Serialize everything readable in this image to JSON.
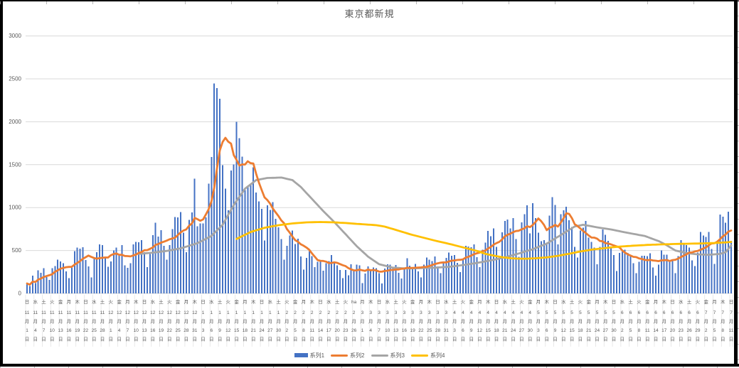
{
  "chart_data": {
    "type": "bar+line",
    "title": "東京都新規",
    "legend_position": "bottom",
    "grid": "horizontal",
    "y_axis": {
      "min": 0,
      "max": 3000,
      "step": 500,
      "ticks": [
        "0",
        "500",
        "1000",
        "1500",
        "2000",
        "2500",
        "3000"
      ]
    },
    "x_axis": {
      "month_suffix": "月",
      "day_suffix": "日",
      "label_every_n_days": 3,
      "labels": [
        [
          "日",
          "11",
          "1"
        ],
        [
          "水",
          "11",
          "4"
        ],
        [
          "土",
          "11",
          "7"
        ],
        [
          "火",
          "11",
          "10"
        ],
        [
          "金",
          "11",
          "13"
        ],
        [
          "月",
          "11",
          "16"
        ],
        [
          "木",
          "11",
          "19"
        ],
        [
          "日",
          "11",
          "22"
        ],
        [
          "水",
          "11",
          "25"
        ],
        [
          "土",
          "11",
          "28"
        ],
        [
          "火",
          "12",
          "1"
        ],
        [
          "金",
          "12",
          "4"
        ],
        [
          "月",
          "12",
          "7"
        ],
        [
          "木",
          "12",
          "10"
        ],
        [
          "日",
          "12",
          "13"
        ],
        [
          "水",
          "12",
          "16"
        ],
        [
          "土",
          "12",
          "19"
        ],
        [
          "火",
          "12",
          "22"
        ],
        [
          "金",
          "12",
          "25"
        ],
        [
          "月",
          "12",
          "28"
        ],
        [
          "木",
          "12",
          "31"
        ],
        [
          "日",
          "1",
          "3"
        ],
        [
          "水",
          "1",
          "6"
        ],
        [
          "土",
          "1",
          "9"
        ],
        [
          "火",
          "1",
          "12"
        ],
        [
          "金",
          "1",
          "15"
        ],
        [
          "月",
          "1",
          "18"
        ],
        [
          "木",
          "1",
          "21"
        ],
        [
          "日",
          "1",
          "24"
        ],
        [
          "水",
          "1",
          "27"
        ],
        [
          "土",
          "1",
          "30"
        ],
        [
          "火",
          "2",
          "2"
        ],
        [
          "金",
          "2",
          "5"
        ],
        [
          "月",
          "2",
          "8"
        ],
        [
          "木",
          "2",
          "11"
        ],
        [
          "日",
          "2",
          "14"
        ],
        [
          "水",
          "2",
          "17"
        ],
        [
          "土",
          "2",
          "20"
        ],
        [
          "火",
          "2",
          "23"
        ],
        [
          "ha",
          "2",
          "26"
        ],
        [
          "月",
          "3",
          "1"
        ],
        [
          "木",
          "3",
          "4"
        ],
        [
          "日",
          "3",
          "7"
        ],
        [
          "水",
          "3",
          "10"
        ],
        [
          "土",
          "3",
          "13"
        ],
        [
          "火",
          "3",
          "16"
        ],
        [
          "金",
          "3",
          "19"
        ],
        [
          "月",
          "3",
          "22"
        ],
        [
          "木",
          "3",
          "25"
        ],
        [
          "日",
          "3",
          "28"
        ],
        [
          "水",
          "3",
          "31"
        ],
        [
          "土",
          "4",
          "3"
        ],
        [
          "火",
          "4",
          "6"
        ],
        [
          "金",
          "4",
          "9"
        ],
        [
          "月",
          "4",
          "12"
        ],
        [
          "木",
          "4",
          "15"
        ],
        [
          "日",
          "4",
          "18"
        ],
        [
          "水",
          "4",
          "21"
        ],
        [
          "土",
          "4",
          "24"
        ],
        [
          "火",
          "4",
          "27"
        ],
        [
          "金",
          "4",
          "30"
        ],
        [
          "月",
          "5",
          "3"
        ],
        [
          "木",
          "5",
          "6"
        ],
        [
          "日",
          "5",
          "9"
        ],
        [
          "水",
          "5",
          "12"
        ],
        [
          "土",
          "5",
          "15"
        ],
        [
          "火",
          "5",
          "18"
        ],
        [
          "金",
          "5",
          "21"
        ],
        [
          "月",
          "5",
          "24"
        ],
        [
          "木",
          "5",
          "27"
        ],
        [
          "日",
          "5",
          "30"
        ],
        [
          "水",
          "6",
          "2"
        ],
        [
          "土",
          "6",
          "5"
        ],
        [
          "火",
          "6",
          "8"
        ],
        [
          "金",
          "6",
          "11"
        ],
        [
          "月",
          "6",
          "14"
        ],
        [
          "木",
          "6",
          "17"
        ],
        [
          "日",
          "6",
          "20"
        ],
        [
          "水",
          "6",
          "23"
        ],
        [
          "土",
          "6",
          "26"
        ],
        [
          "火",
          "6",
          "29"
        ],
        [
          "金",
          "7",
          "2"
        ],
        [
          "月",
          "7",
          "5"
        ],
        [
          "木",
          "7",
          "8"
        ],
        [
          "日",
          "7",
          "11"
        ]
      ]
    },
    "series": [
      {
        "name": "系列1",
        "type": "bar",
        "color": "#4472C4",
        "values": [
          116,
          87,
          209,
          122,
          269,
          242,
          294,
          189,
          157,
          293,
          317,
          393,
          374,
          352,
          255,
          180,
          298,
          493,
          534,
          522,
          539,
          391,
          314,
          186,
          401,
          481,
          570,
          561,
          418,
          311,
          372,
          500,
          533,
          449,
          561,
          327,
          299,
          352,
          572,
          602,
          595,
          621,
          480,
          305,
          460,
          678,
          822,
          664,
          736,
          556,
          392,
          563,
          748,
          888,
          884,
          949,
          708,
          481,
          856,
          944,
          1337,
          783,
          814,
          816,
          884,
          1278,
          1591,
          2447,
          2392,
          2268,
          1494,
          1219,
          970,
          1433,
          1502,
          2001,
          1809,
          1592,
          1204,
          1240,
          1274,
          1471,
          1175,
          1070,
          986,
          618,
          1026,
          973,
          1064,
          868,
          769,
          633,
          393,
          556,
          676,
          734,
          577,
          639,
          429,
          276,
          412,
          491,
          434,
          307,
          369,
          371,
          266,
          350,
          378,
          445,
          353,
          327,
          272,
          178,
          275,
          213,
          340,
          270,
          337,
          329,
          121,
          232,
          316,
          279,
          301,
          293,
          237,
          116,
          290,
          340,
          335,
          304,
          330,
          239,
          175,
          300,
          409,
          323,
          303,
          342,
          256,
          187,
          337,
          420,
          394,
          376,
          430,
          313,
          234,
          364,
          414,
          475,
          440,
          446,
          355,
          249,
          399,
          555,
          545,
          537,
          570,
          421,
          306,
          510,
          591,
          729,
          667,
          759,
          543,
          405,
          711,
          843,
          861,
          759,
          876,
          635,
          425,
          828,
          925,
          1027,
          698,
          1050,
          879,
          708,
          609,
          621,
          591,
          907,
          1121,
          1032,
          573,
          925,
          969,
          1010,
          854,
          772,
          542,
          419,
          732,
          766,
          843,
          649,
          602,
          535,
          340,
          542,
          743,
          684,
          614,
          539,
          448,
          260,
          471,
          487,
          508,
          472,
          436,
          351,
          235,
          369,
          440,
          439,
          435,
          467,
          304,
          209,
          337,
          501,
          452,
          453,
          388,
          376,
          236,
          435,
          619,
          570,
          562,
          534,
          386,
          317,
          476,
          714,
          673,
          660,
          716,
          518,
          342,
          593,
          920,
          896,
          822,
          950,
          614
        ]
      },
      {
        "name": "系列2",
        "type": "line",
        "color": "#ED7D31",
        "derivation": "7-day trailing moving average of 系列1"
      },
      {
        "name": "系列3",
        "type": "line",
        "color": "#A5A5A5",
        "points_day_value": [
          [
            40,
            460
          ],
          [
            45,
            475
          ],
          [
            50,
            495
          ],
          [
            55,
            525
          ],
          [
            61,
            585
          ],
          [
            66,
            670
          ],
          [
            70,
            800
          ],
          [
            74,
            1030
          ],
          [
            78,
            1220
          ],
          [
            82,
            1320
          ],
          [
            86,
            1345
          ],
          [
            91,
            1350
          ],
          [
            95,
            1320
          ],
          [
            98,
            1240
          ],
          [
            102,
            1100
          ],
          [
            106,
            960
          ],
          [
            110,
            830
          ],
          [
            114,
            690
          ],
          [
            118,
            550
          ],
          [
            122,
            430
          ],
          [
            126,
            340
          ],
          [
            131,
            300
          ],
          [
            136,
            290
          ],
          [
            141,
            295
          ],
          [
            146,
            300
          ],
          [
            151,
            310
          ],
          [
            156,
            330
          ],
          [
            161,
            355
          ],
          [
            166,
            385
          ],
          [
            171,
            420
          ],
          [
            176,
            465
          ],
          [
            181,
            515
          ],
          [
            186,
            580
          ],
          [
            191,
            680
          ],
          [
            196,
            780
          ],
          [
            199,
            800
          ],
          [
            204,
            770
          ],
          [
            209,
            745
          ],
          [
            215,
            705
          ],
          [
            221,
            670
          ],
          [
            226,
            610
          ],
          [
            229,
            560
          ],
          [
            232,
            500
          ],
          [
            236,
            470
          ],
          [
            240,
            455
          ],
          [
            244,
            450
          ],
          [
            248,
            460
          ],
          [
            250,
            480
          ],
          [
            252,
            560
          ]
        ]
      },
      {
        "name": "系列4",
        "type": "line",
        "color": "#FFC000",
        "points_day_value": [
          [
            75,
            635
          ],
          [
            80,
            715
          ],
          [
            85,
            765
          ],
          [
            90,
            795
          ],
          [
            95,
            815
          ],
          [
            100,
            828
          ],
          [
            105,
            832
          ],
          [
            110,
            828
          ],
          [
            115,
            818
          ],
          [
            120,
            806
          ],
          [
            125,
            795
          ],
          [
            128,
            778
          ],
          [
            131,
            750
          ],
          [
            134,
            720
          ],
          [
            137,
            690
          ],
          [
            140,
            665
          ],
          [
            143,
            640
          ],
          [
            146,
            615
          ],
          [
            149,
            593
          ],
          [
            152,
            570
          ],
          [
            155,
            545
          ],
          [
            158,
            520
          ],
          [
            161,
            495
          ],
          [
            164,
            462
          ],
          [
            167,
            440
          ],
          [
            170,
            422
          ],
          [
            173,
            410
          ],
          [
            176,
            405
          ],
          [
            179,
            405
          ],
          [
            182,
            410
          ],
          [
            186,
            420
          ],
          [
            190,
            438
          ],
          [
            194,
            462
          ],
          [
            198,
            488
          ],
          [
            202,
            510
          ],
          [
            206,
            525
          ],
          [
            210,
            540
          ],
          [
            214,
            550
          ],
          [
            218,
            558
          ],
          [
            222,
            565
          ],
          [
            226,
            570
          ],
          [
            230,
            574
          ],
          [
            234,
            578
          ],
          [
            238,
            580
          ],
          [
            242,
            583
          ],
          [
            246,
            588
          ],
          [
            250,
            594
          ],
          [
            252,
            600
          ]
        ]
      }
    ]
  },
  "colors": {
    "gridline": "#D9D9D9",
    "axis_text": "#595959",
    "label_separator": "#E3E3E3",
    "frame": "#000000"
  }
}
